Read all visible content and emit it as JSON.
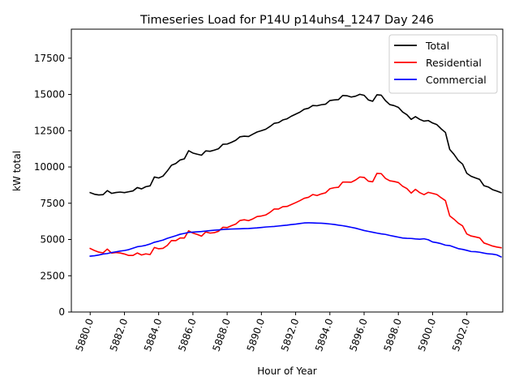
{
  "chart_data": {
    "type": "line",
    "title": "Timeseries Load for P14U p14uhs4_1247  Day 246",
    "xlabel": "Hour of Year",
    "ylabel": "kW total",
    "xlim": [
      5878.9,
      5904.1
    ],
    "ylim": [
      0,
      19500
    ],
    "x_start": 5880.0,
    "x_step": 0.25,
    "x_ticks": [
      5880.0,
      5882.0,
      5884.0,
      5886.0,
      5888.0,
      5890.0,
      5892.0,
      5894.0,
      5896.0,
      5898.0,
      5900.0,
      5902.0
    ],
    "x_tick_labels": [
      "5880.0",
      "5882.0",
      "5884.0",
      "5886.0",
      "5888.0",
      "5890.0",
      "5892.0",
      "5894.0",
      "5896.0",
      "5898.0",
      "5900.0",
      "5902.0"
    ],
    "y_ticks": [
      0,
      2500,
      5000,
      7500,
      10000,
      12500,
      15000,
      17500
    ],
    "y_tick_labels": [
      "0",
      "2500",
      "5000",
      "7500",
      "10000",
      "12500",
      "15000",
      "17500"
    ],
    "legend_position": "top-right",
    "grid": false,
    "series": [
      {
        "name": "Total",
        "color": "#000000",
        "values": [
          8230,
          8120,
          8070,
          8090,
          8370,
          8180,
          8240,
          8270,
          8230,
          8290,
          8350,
          8580,
          8490,
          8640,
          8700,
          9310,
          9240,
          9370,
          9720,
          10120,
          10240,
          10480,
          10560,
          11120,
          10960,
          10880,
          10810,
          11110,
          11080,
          11160,
          11260,
          11560,
          11580,
          11700,
          11840,
          12080,
          12120,
          12100,
          12260,
          12410,
          12500,
          12600,
          12790,
          13010,
          13060,
          13240,
          13320,
          13500,
          13640,
          13780,
          13980,
          14050,
          14240,
          14220,
          14290,
          14330,
          14580,
          14620,
          14640,
          14930,
          14910,
          14820,
          14880,
          15010,
          14940,
          14620,
          14530,
          14980,
          14950,
          14570,
          14300,
          14230,
          14110,
          13790,
          13600,
          13280,
          13470,
          13280,
          13160,
          13200,
          13030,
          12920,
          12630,
          12380,
          11210,
          10870,
          10450,
          10200,
          9560,
          9360,
          9250,
          9140,
          8710,
          8620,
          8440,
          8340,
          8230
        ]
      },
      {
        "name": "Residential",
        "color": "#ff0000",
        "values": [
          4380,
          4240,
          4130,
          4080,
          4340,
          4060,
          4100,
          4070,
          4000,
          3900,
          3900,
          4070,
          3930,
          4010,
          3960,
          4450,
          4360,
          4390,
          4590,
          4930,
          4920,
          5100,
          5100,
          5600,
          5440,
          5350,
          5230,
          5520,
          5440,
          5470,
          5570,
          5840,
          5820,
          5950,
          6060,
          6310,
          6360,
          6300,
          6420,
          6580,
          6620,
          6690,
          6870,
          7100,
          7100,
          7260,
          7280,
          7410,
          7540,
          7680,
          7840,
          7910,
          8100,
          8030,
          8140,
          8220,
          8500,
          8570,
          8600,
          8960,
          8960,
          8950,
          9100,
          9310,
          9280,
          9020,
          8980,
          9560,
          9540,
          9210,
          9050,
          9000,
          8930,
          8670,
          8510,
          8200,
          8460,
          8230,
          8090,
          8250,
          8180,
          8100,
          7880,
          7680,
          6630,
          6400,
          6130,
          5940,
          5380,
          5240,
          5180,
          5110,
          4760,
          4660,
          4550,
          4480,
          4430
        ]
      },
      {
        "name": "Commercial",
        "color": "#0000ff",
        "values": [
          3850,
          3880,
          3930,
          4000,
          4030,
          4100,
          4150,
          4200,
          4240,
          4300,
          4400,
          4500,
          4540,
          4600,
          4690,
          4810,
          4880,
          4960,
          5080,
          5170,
          5260,
          5360,
          5420,
          5490,
          5510,
          5530,
          5550,
          5580,
          5610,
          5640,
          5660,
          5690,
          5710,
          5720,
          5730,
          5740,
          5750,
          5760,
          5780,
          5800,
          5830,
          5860,
          5880,
          5900,
          5930,
          5960,
          5990,
          6030,
          6060,
          6100,
          6140,
          6150,
          6140,
          6130,
          6120,
          6100,
          6070,
          6040,
          5990,
          5950,
          5900,
          5840,
          5780,
          5700,
          5620,
          5560,
          5500,
          5440,
          5390,
          5350,
          5280,
          5220,
          5160,
          5100,
          5080,
          5070,
          5040,
          5020,
          5050,
          4980,
          4830,
          4780,
          4710,
          4610,
          4580,
          4480,
          4370,
          4320,
          4250,
          4170,
          4160,
          4120,
          4060,
          4010,
          3990,
          3940,
          3800
        ]
      }
    ]
  }
}
